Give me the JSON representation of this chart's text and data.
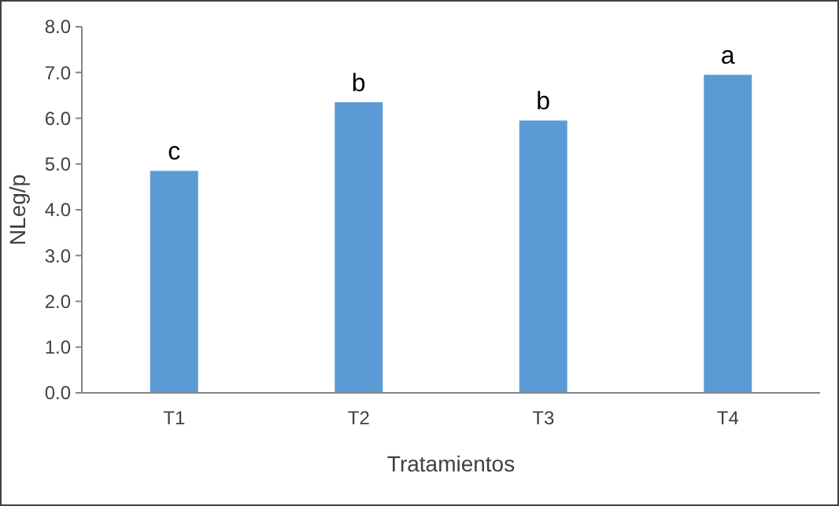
{
  "chart_data": {
    "type": "bar",
    "xlabel": "Tratamientos",
    "ylabel": "NLeg/p",
    "categories": [
      "T1",
      "T2",
      "T3",
      "T4"
    ],
    "values": [
      4.85,
      6.35,
      5.95,
      6.95
    ],
    "color": "#5b9bd5",
    "ylim": [
      0,
      8
    ],
    "yticks": [
      {
        "value": 0,
        "label": "0.0"
      },
      {
        "value": 1,
        "label": "1.0"
      },
      {
        "value": 2,
        "label": "2.0"
      },
      {
        "value": 3,
        "label": "3.0"
      },
      {
        "value": 4,
        "label": "4.0"
      },
      {
        "value": 5,
        "label": "5.0"
      },
      {
        "value": 6,
        "label": "6.0"
      },
      {
        "value": 7,
        "label": "7.0"
      },
      {
        "value": 8,
        "label": "8.0"
      }
    ],
    "annotations": [
      {
        "text": "c",
        "x": "T1",
        "y": 4.85
      },
      {
        "text": "b",
        "x": "T2",
        "y": 6.35
      },
      {
        "text": "b",
        "x": "T3",
        "y": 5.95
      },
      {
        "text": "a",
        "x": "T4",
        "y": 6.95
      }
    ],
    "grid": false
  }
}
